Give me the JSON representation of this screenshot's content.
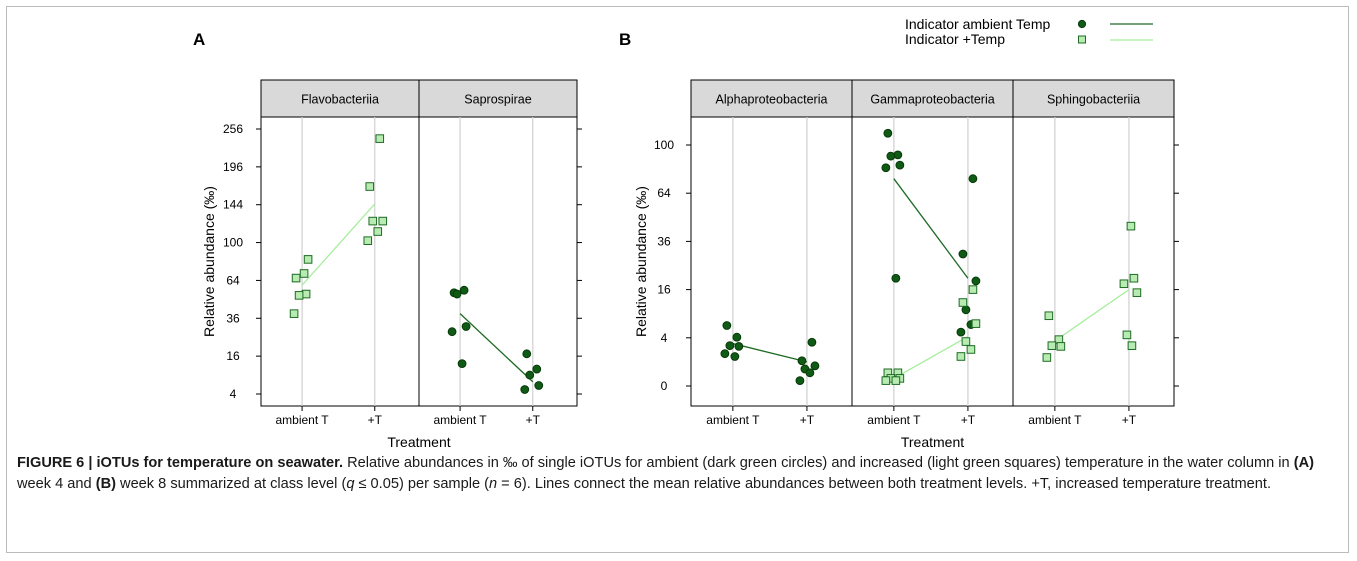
{
  "figure": {
    "caption_label": "FIGURE 6 | iOTUs for temperature on seawater.",
    "caption_text_1": " Relative abundances in ‰ of single iOTUs for ambient (dark green circles) and increased (light green squares) temperature in the water column in ",
    "caption_ref_a": "(A)",
    "caption_text_2": " week 4 and ",
    "caption_ref_b": "(B)",
    "caption_text_3": " week 8 summarized at class level (",
    "caption_q": "q",
    "caption_text_4": " ≤ 0.05) per sample (",
    "caption_n": "n",
    "caption_text_5": " = 6). Lines connect the mean relative abundances between both treatment levels. +T, increased temperature treatment."
  },
  "legend": {
    "ambient_label": "Indicator ambient Temp",
    "plus_label": "Indicator +Temp"
  },
  "colors": {
    "ambient": "#0f5a14",
    "ambient_line": "#1e6b24",
    "plus_fill": "#b7ebb2",
    "plus_stroke": "#1e6b24",
    "plus_line": "#a6ee9c",
    "strip": "#d9d9d9",
    "grid": "#d0d0d0"
  },
  "chart_data": [
    {
      "type": "scatter",
      "panel_label": "A",
      "ylabel": "Relative abundance (‰)",
      "xlabel": "Treatment",
      "y_scale": "sqrt",
      "ylim": [
        2.5,
        290
      ],
      "yticks": [
        4,
        16,
        36,
        64,
        100,
        144,
        196,
        256
      ],
      "categories": [
        "ambient T",
        "+T"
      ],
      "panels": [
        {
          "name": "Flavobacteriia",
          "series": [
            {
              "name": "Indicator ambient Temp",
              "marker": "circle",
              "points": []
            },
            {
              "name": "Indicator +Temp",
              "marker": "square",
              "points": [
                [
                  1,
                  66
                ],
                [
                  1,
                  53
                ],
                [
                  1,
                  52
                ],
                [
                  1,
                  83
                ],
                [
                  1,
                  39
                ],
                [
                  1,
                  70
                ],
                [
                  2,
                  240
                ],
                [
                  2,
                  168
                ],
                [
                  2,
                  124
                ],
                [
                  2,
                  124
                ],
                [
                  2,
                  112
                ],
                [
                  2,
                  102
                ]
              ],
              "means": [
                60,
                145
              ]
            }
          ]
        },
        {
          "name": "Saprospirae",
          "series": [
            {
              "name": "Indicator ambient Temp",
              "marker": "circle",
              "points": [
                [
                  1,
                  54
                ],
                [
                  1,
                  56
                ],
                [
                  1,
                  53
                ],
                [
                  1,
                  31
                ],
                [
                  1,
                  28
                ],
                [
                  1,
                  13
                ]
              ],
              "means": [
                39,
                7
              ]
            },
            {
              "name": "Indicator +Temp",
              "marker": "circle",
              "points": [
                [
                  2,
                  17
                ],
                [
                  2,
                  11
                ],
                [
                  2,
                  9
                ],
                [
                  2,
                  6
                ],
                [
                  2,
                  5
                ]
              ]
            }
          ]
        }
      ]
    },
    {
      "type": "scatter",
      "panel_label": "B",
      "ylabel": "Relative abundance (‰)",
      "xlabel": "Treatment",
      "y_scale": "sqrt",
      "ylim": [
        -0.8,
        120
      ],
      "yticks": [
        0,
        4,
        16,
        36,
        64,
        100
      ],
      "categories": [
        "ambient T",
        "+T"
      ],
      "panels": [
        {
          "name": "Alphaproteobacteria",
          "series": [
            {
              "name": "Indicator ambient Temp",
              "marker": "circle",
              "points": [
                [
                  1,
                  6.3
                ],
                [
                  1,
                  4.1
                ],
                [
                  1,
                  2.8
                ],
                [
                  1,
                  2.7
                ],
                [
                  1,
                  1.8
                ],
                [
                  1,
                  1.5
                ],
                [
                  2,
                  3.3
                ],
                [
                  2,
                  1.1
                ],
                [
                  2,
                  0.7
                ],
                [
                  2,
                  0.5
                ],
                [
                  2,
                  0.3
                ],
                [
                  2,
                  0.05
                ]
              ],
              "means": [
                3.1,
                1.0
              ]
            },
            {
              "name": "Indicator +Temp",
              "marker": "square",
              "points": []
            }
          ]
        },
        {
          "name": "Gammaproteobacteria",
          "series": [
            {
              "name": "Indicator ambient Temp",
              "marker": "circle",
              "points": [
                [
                  1,
                  110
                ],
                [
                  1,
                  92
                ],
                [
                  1,
                  91
                ],
                [
                  1,
                  84
                ],
                [
                  1,
                  82
                ],
                [
                  1,
                  20
                ],
                [
                  2,
                  74
                ],
                [
                  2,
                  30
                ],
                [
                  2,
                  19
                ],
                [
                  2,
                  10
                ],
                [
                  2,
                  6.5
                ],
                [
                  2,
                  5
                ]
              ],
              "means": [
                74,
                20
              ]
            },
            {
              "name": "Indicator +Temp",
              "marker": "square",
              "points": [
                [
                  1,
                  0.3
                ],
                [
                  1,
                  0.3
                ],
                [
                  1,
                  0.1
                ],
                [
                  1,
                  0.1
                ],
                [
                  1,
                  0.05
                ],
                [
                  1,
                  0.05
                ],
                [
                  2,
                  16
                ],
                [
                  2,
                  12
                ],
                [
                  2,
                  6.7
                ],
                [
                  2,
                  3.4
                ],
                [
                  2,
                  2.3
                ],
                [
                  2,
                  1.5
                ]
              ],
              "means": [
                0.1,
                4.2
              ]
            }
          ]
        },
        {
          "name": "Sphingobacteriia",
          "series": [
            {
              "name": "Indicator ambient Temp",
              "marker": "circle",
              "points": []
            },
            {
              "name": "Indicator +Temp",
              "marker": "square",
              "points": [
                [
                  1,
                  8.5
                ],
                [
                  1,
                  3.7
                ],
                [
                  1,
                  2.8
                ],
                [
                  1,
                  2.7
                ],
                [
                  1,
                  1.4
                ],
                [
                  2,
                  44
                ],
                [
                  2,
                  20
                ],
                [
                  2,
                  18
                ],
                [
                  2,
                  15
                ],
                [
                  2,
                  4.5
                ],
                [
                  2,
                  2.8
                ]
              ],
              "means": [
                3.5,
                16
              ]
            }
          ]
        }
      ]
    }
  ]
}
